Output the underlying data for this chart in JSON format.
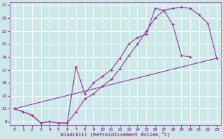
{
  "xlabel": "Windchill (Refroidissement éolien,°C)",
  "bg_color": "#cce8e8",
  "line_color": "#993399",
  "grid_color": "#ffffff",
  "xlim": [
    -0.5,
    23.5
  ],
  "ylim": [
    8.5,
    27.5
  ],
  "yticks": [
    9,
    11,
    13,
    15,
    17,
    19,
    21,
    23,
    25,
    27
  ],
  "xticks": [
    0,
    1,
    2,
    3,
    4,
    5,
    6,
    7,
    8,
    9,
    10,
    11,
    12,
    13,
    14,
    15,
    16,
    17,
    18,
    19,
    20,
    21,
    22,
    23
  ],
  "line1_x": [
    0,
    1,
    2,
    3,
    4,
    5,
    6,
    7,
    8,
    9,
    10,
    11,
    12,
    13,
    14,
    15,
    16,
    17,
    18,
    19,
    20,
    21,
    22,
    23
  ],
  "line1_y": [
    11,
    10.5,
    10.0,
    8.8,
    9.0,
    8.8,
    8.8,
    10.5,
    12.5,
    13.3,
    14.5,
    15.5,
    17.2,
    19.2,
    21.0,
    23.0,
    25.0,
    26.2,
    26.5,
    26.7,
    26.5,
    25.5,
    24.2,
    18.8
  ],
  "line2_x": [
    0,
    1,
    2,
    3,
    4,
    5,
    6,
    7,
    8,
    9,
    10,
    11,
    12,
    13,
    14,
    15,
    16,
    17,
    18,
    19,
    20
  ],
  "line2_y": [
    11,
    10.5,
    10.0,
    8.8,
    9.0,
    8.8,
    8.8,
    17.5,
    13.3,
    15.0,
    16.0,
    17.0,
    18.8,
    21.0,
    22.0,
    22.5,
    26.5,
    26.2,
    24.0,
    19.2,
    19.0
  ],
  "line3_x": [
    0,
    23
  ],
  "line3_y": [
    11,
    18.8
  ]
}
